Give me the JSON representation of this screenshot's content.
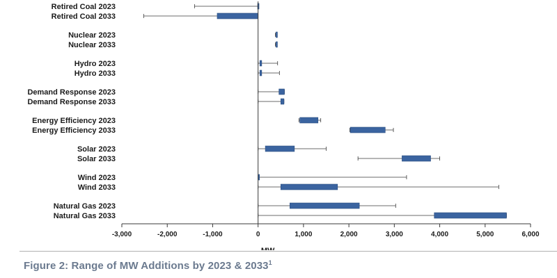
{
  "chart_data": {
    "type": "box",
    "orientation": "horizontal",
    "xlabel": "MW",
    "xlim": [
      -3000,
      6000
    ],
    "xticks": [
      -3000,
      -2000,
      -1000,
      0,
      1000,
      2000,
      3000,
      4000,
      5000,
      6000
    ],
    "xtick_labels": [
      "-3,000",
      "-2,000",
      "-1,000",
      "0",
      "1,000",
      "2,000",
      "3,000",
      "4,000",
      "5,000",
      "6,000"
    ],
    "box_color": "#3b64a0",
    "groups": [
      {
        "rows": [
          {
            "label": "Retired Coal 2023",
            "min": -1400,
            "q1": -10,
            "q3": 0,
            "max": 0
          },
          {
            "label": "Retired Coal 2033",
            "min": -2520,
            "q1": -900,
            "q3": 0,
            "max": 0
          }
        ]
      },
      {
        "rows": [
          {
            "label": "Nuclear 2023",
            "min": 380,
            "q1": 395,
            "q3": 410,
            "max": 420
          },
          {
            "label": "Nuclear 2033",
            "min": 380,
            "q1": 395,
            "q3": 410,
            "max": 420
          }
        ]
      },
      {
        "rows": [
          {
            "label": "Hydro 2023",
            "min": 0,
            "q1": 40,
            "q3": 80,
            "max": 430
          },
          {
            "label": "Hydro 2033",
            "min": 0,
            "q1": 40,
            "q3": 80,
            "max": 470
          }
        ]
      },
      {
        "rows": [
          {
            "label": "Demand Response 2023",
            "min": 0,
            "q1": 460,
            "q3": 580,
            "max": 580
          },
          {
            "label": "Demand Response 2033",
            "min": 0,
            "q1": 500,
            "q3": 570,
            "max": 570
          }
        ]
      },
      {
        "rows": [
          {
            "label": "Energy Efficiency 2023",
            "min": 900,
            "q1": 920,
            "q3": 1320,
            "max": 1380
          },
          {
            "label": "Energy Efficiency 2033",
            "min": 2020,
            "q1": 2030,
            "q3": 2800,
            "max": 2980
          }
        ]
      },
      {
        "rows": [
          {
            "label": "Solar 2023",
            "min": 0,
            "q1": 160,
            "q3": 800,
            "max": 1500
          },
          {
            "label": "Solar 2033",
            "min": 2200,
            "q1": 3170,
            "q3": 3800,
            "max": 4000
          }
        ]
      },
      {
        "rows": [
          {
            "label": "Wind 2023",
            "min": 0,
            "q1": 0,
            "q3": 20,
            "max": 3270
          },
          {
            "label": "Wind 2033",
            "min": 0,
            "q1": 500,
            "q3": 1750,
            "max": 5300
          }
        ]
      },
      {
        "rows": [
          {
            "label": "Natural Gas 2023",
            "min": 0,
            "q1": 700,
            "q3": 2230,
            "max": 3030
          },
          {
            "label": "Natural Gas 2033",
            "min": 0,
            "q1": 3880,
            "q3": 5470,
            "max": 5470
          }
        ]
      }
    ]
  },
  "caption": {
    "text": "Figure 2: Range of MW Additions by 2023 & 2033",
    "superscript": "1"
  }
}
